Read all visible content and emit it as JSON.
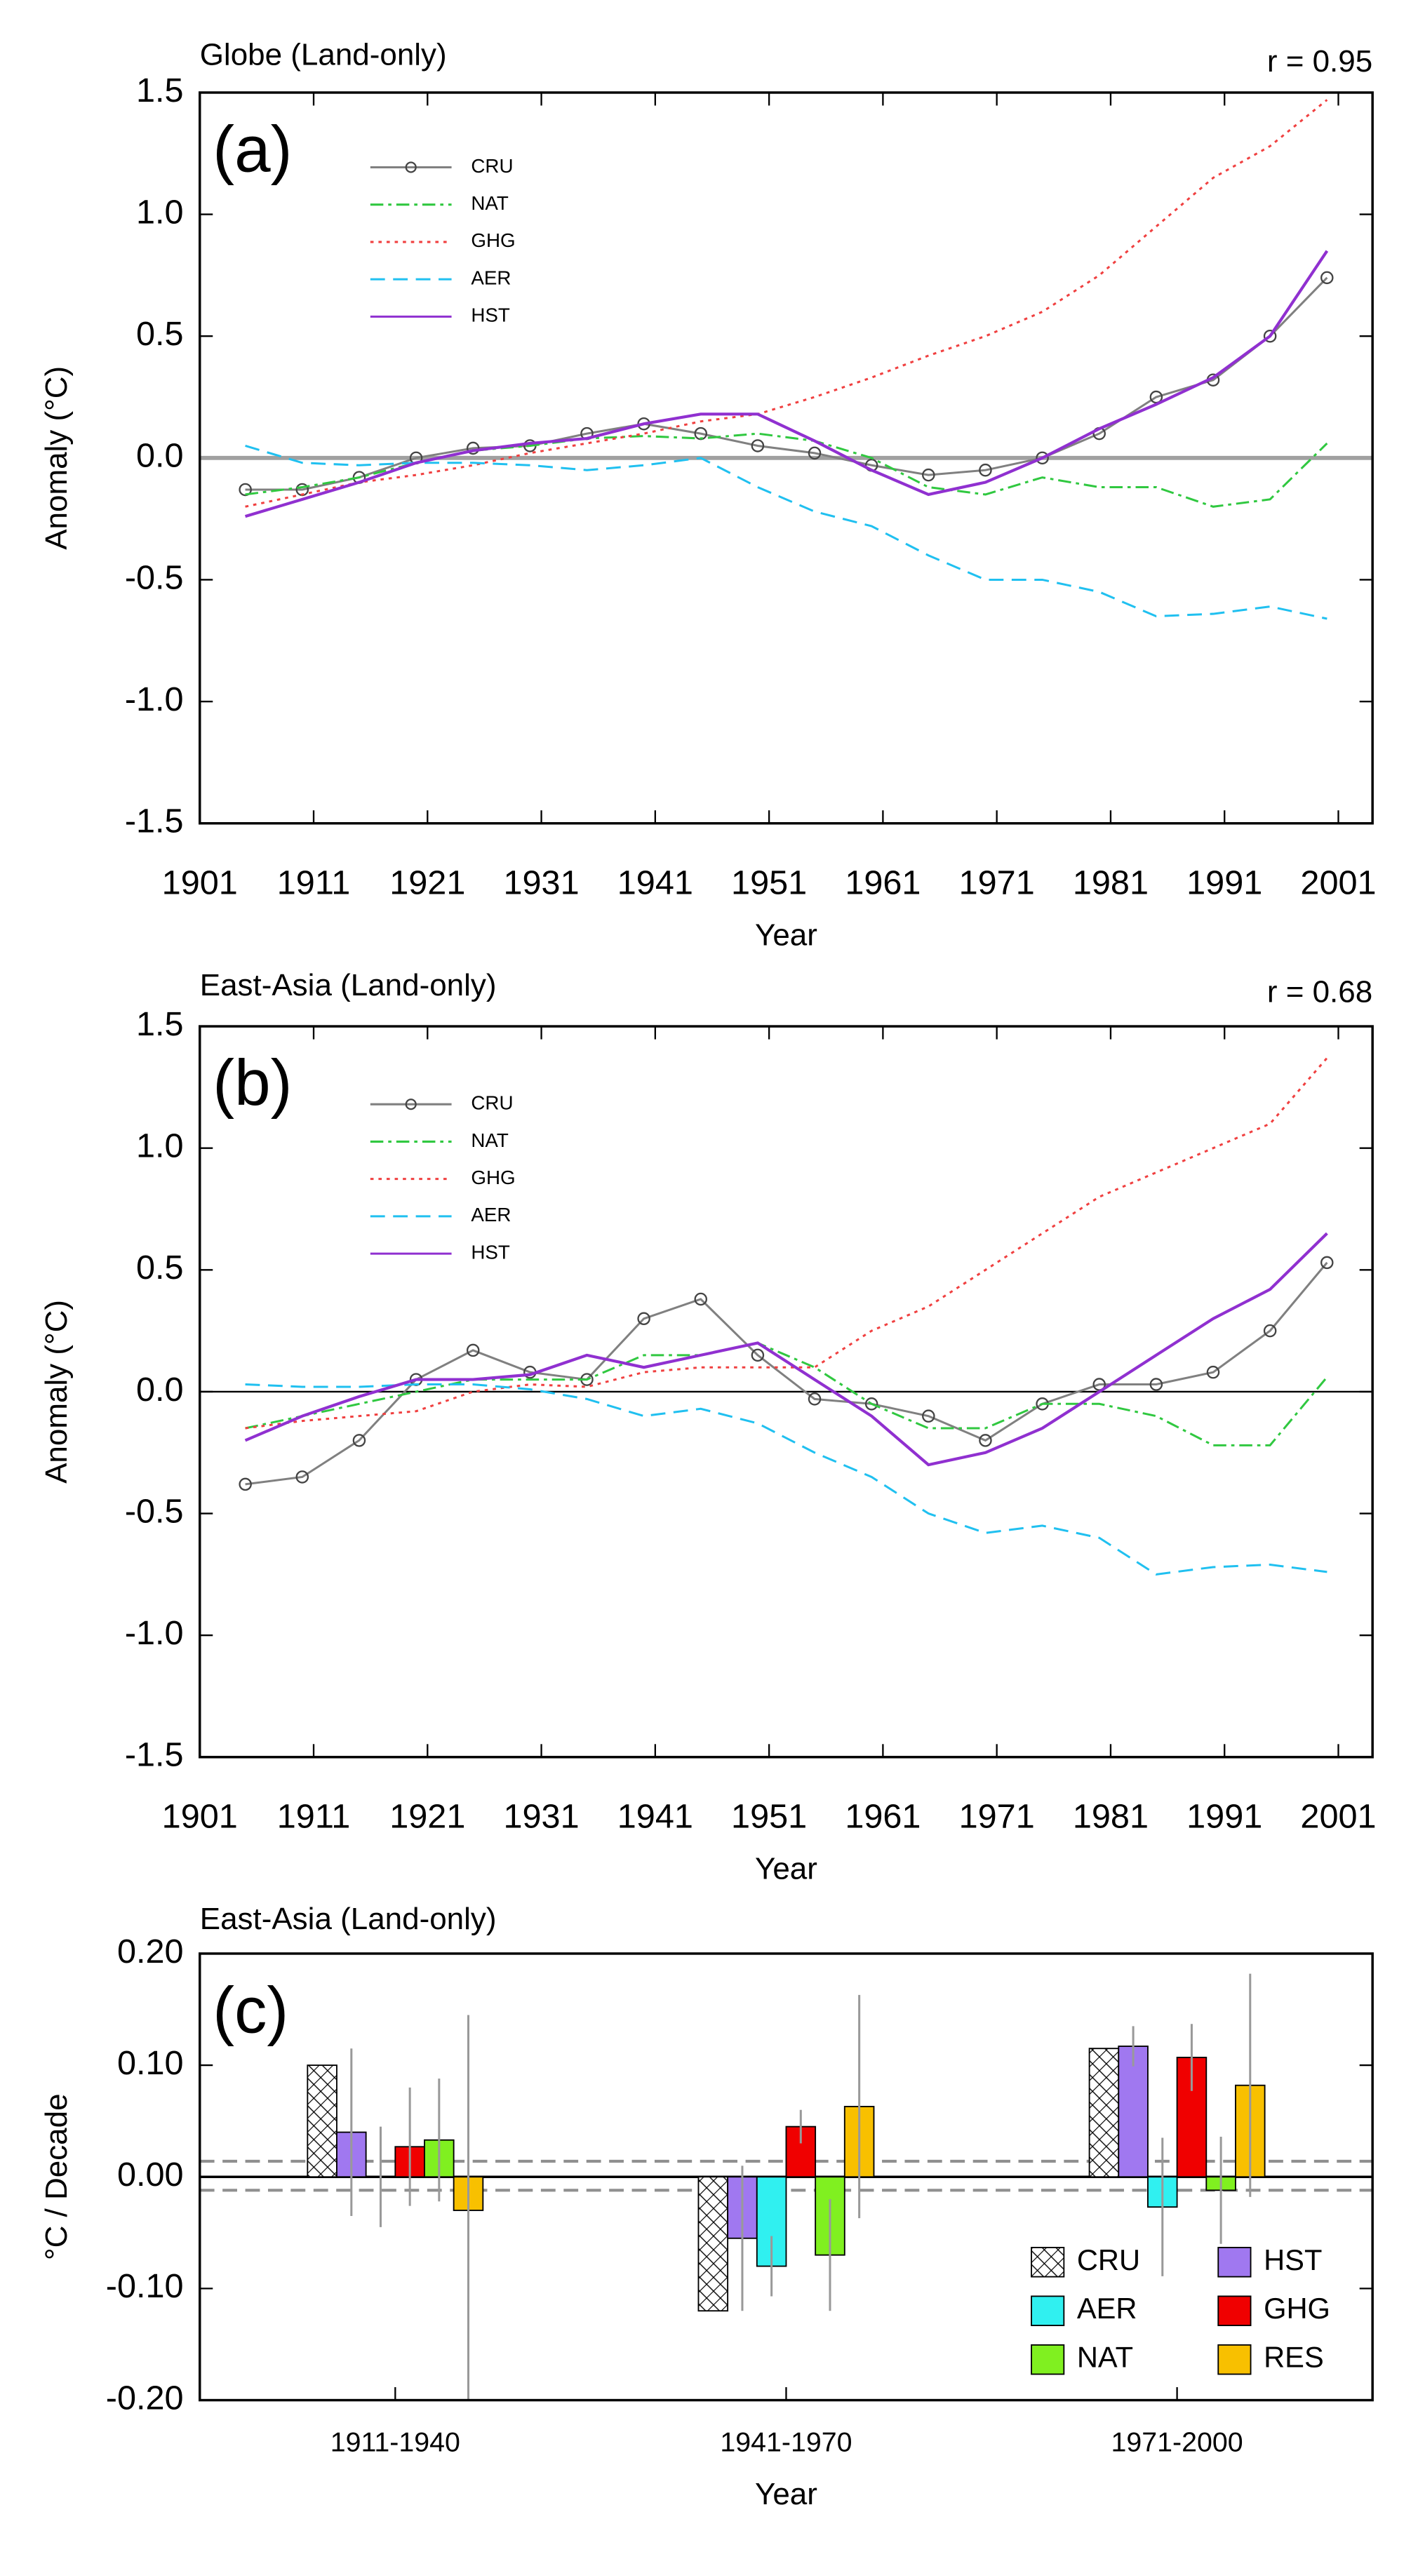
{
  "chart_data": [
    {
      "type": "line",
      "title": "Globe (Land-only)",
      "panel_label": "(a)",
      "annotation": "r = 0.95",
      "xlabel": "Year",
      "ylabel": "Anomaly (°C)",
      "x": [
        1905,
        1910,
        1915,
        1920,
        1925,
        1930,
        1935,
        1940,
        1945,
        1950,
        1955,
        1960,
        1965,
        1970,
        1975,
        1980,
        1985,
        1990,
        1995,
        2000
      ],
      "series": [
        {
          "name": "CRU",
          "color": "#808080",
          "style": "solid",
          "marker": "circle",
          "values": [
            -0.13,
            -0.13,
            -0.08,
            0.0,
            0.04,
            0.05,
            0.1,
            0.14,
            0.1,
            0.05,
            0.02,
            -0.03,
            -0.07,
            -0.05,
            0.0,
            0.1,
            0.25,
            0.32,
            0.5,
            0.74
          ]
        },
        {
          "name": "NAT",
          "color": "#30c840",
          "style": "dash-dot",
          "values": [
            -0.15,
            -0.12,
            -0.08,
            -0.02,
            0.03,
            0.05,
            0.08,
            0.09,
            0.08,
            0.1,
            0.07,
            0.0,
            -0.12,
            -0.15,
            -0.08,
            -0.12,
            -0.12,
            -0.2,
            -0.17,
            0.06
          ]
        },
        {
          "name": "GHG",
          "color": "#f04040",
          "style": "dotted",
          "values": [
            -0.2,
            -0.15,
            -0.1,
            -0.07,
            -0.03,
            0.02,
            0.06,
            0.1,
            0.15,
            0.18,
            0.25,
            0.33,
            0.42,
            0.5,
            0.6,
            0.75,
            0.95,
            1.15,
            1.28,
            1.47
          ]
        },
        {
          "name": "AER",
          "color": "#20c0f0",
          "style": "dashed",
          "values": [
            0.05,
            -0.02,
            -0.03,
            -0.02,
            -0.02,
            -0.03,
            -0.05,
            -0.03,
            0.0,
            -0.12,
            -0.22,
            -0.28,
            -0.4,
            -0.5,
            -0.5,
            -0.55,
            -0.65,
            -0.64,
            -0.61,
            -0.66
          ]
        },
        {
          "name": "HST",
          "color": "#9030d0",
          "style": "solid",
          "values": [
            -0.24,
            -0.17,
            -0.1,
            -0.02,
            0.03,
            0.06,
            0.08,
            0.14,
            0.18,
            0.18,
            0.07,
            -0.05,
            -0.15,
            -0.1,
            0.0,
            0.12,
            0.22,
            0.33,
            0.5,
            0.85
          ]
        }
      ],
      "xlim": [
        1901,
        2004
      ],
      "xticks": [
        1901,
        1911,
        1921,
        1931,
        1941,
        1951,
        1961,
        1971,
        1981,
        1991,
        2001
      ],
      "ylim": [
        -1.5,
        1.5
      ],
      "yticks": [
        1.5,
        {
          "value": 1,
          "label": "1.0"
        },
        0.5,
        {
          "value": 0,
          "label": "0.0"
        },
        -0.5,
        {
          "value": -1,
          "label": "-1.0"
        },
        -1.5
      ],
      "zero_line_color": "#a0a0a0",
      "legend": "upper left"
    },
    {
      "type": "line",
      "title": "East-Asia (Land-only)",
      "panel_label": "(b)",
      "annotation": "r = 0.68",
      "xlabel": "Year",
      "ylabel": "Anomaly (°C)",
      "x": [
        1905,
        1910,
        1915,
        1920,
        1925,
        1930,
        1935,
        1940,
        1945,
        1950,
        1955,
        1960,
        1965,
        1970,
        1975,
        1980,
        1985,
        1990,
        1995,
        2000
      ],
      "series": [
        {
          "name": "CRU",
          "color": "#808080",
          "style": "solid",
          "marker": "circle",
          "values": [
            -0.38,
            -0.35,
            -0.2,
            0.05,
            0.17,
            0.08,
            0.05,
            0.3,
            0.38,
            0.15,
            -0.03,
            -0.05,
            -0.1,
            -0.2,
            -0.05,
            0.03,
            0.03,
            0.08,
            0.25,
            0.53
          ]
        },
        {
          "name": "NAT",
          "color": "#30c840",
          "style": "dash-dot",
          "values": [
            -0.15,
            -0.1,
            -0.05,
            0.0,
            0.05,
            0.05,
            0.05,
            0.15,
            0.15,
            0.2,
            0.1,
            -0.05,
            -0.15,
            -0.15,
            -0.05,
            -0.05,
            -0.1,
            -0.22,
            -0.22,
            0.06
          ]
        },
        {
          "name": "GHG",
          "color": "#f04040",
          "style": "dotted",
          "values": [
            -0.15,
            -0.12,
            -0.1,
            -0.08,
            0.0,
            0.03,
            0.02,
            0.08,
            0.1,
            0.1,
            0.1,
            0.25,
            0.35,
            0.5,
            0.65,
            0.8,
            0.9,
            1.0,
            1.1,
            1.37
          ]
        },
        {
          "name": "AER",
          "color": "#20c0f0",
          "style": "dashed",
          "values": [
            0.03,
            0.02,
            0.02,
            0.03,
            0.03,
            0.01,
            -0.03,
            -0.1,
            -0.07,
            -0.13,
            -0.25,
            -0.35,
            -0.5,
            -0.58,
            -0.55,
            -0.6,
            -0.75,
            -0.72,
            -0.71,
            -0.74
          ]
        },
        {
          "name": "HST",
          "color": "#9030d0",
          "style": "solid",
          "values": [
            -0.2,
            -0.1,
            -0.02,
            0.05,
            0.05,
            0.07,
            0.15,
            0.1,
            0.15,
            0.2,
            0.05,
            -0.1,
            -0.3,
            -0.25,
            -0.15,
            0.0,
            0.15,
            0.3,
            0.42,
            0.65
          ]
        }
      ],
      "xlim": [
        1901,
        2004
      ],
      "xticks": [
        1901,
        1911,
        1921,
        1931,
        1941,
        1951,
        1961,
        1971,
        1981,
        1991,
        2001
      ],
      "ylim": [
        -1.5,
        1.5
      ],
      "yticks": [
        1.5,
        {
          "value": 1,
          "label": "1.0"
        },
        0.5,
        {
          "value": 0,
          "label": "0.0"
        },
        -0.5,
        {
          "value": -1,
          "label": "-1.0"
        },
        -1.5
      ],
      "zero_line_color": "#000000",
      "legend": "upper left"
    },
    {
      "type": "bar",
      "title": "East-Asia (Land-only)",
      "panel_label": "(c)",
      "xlabel": "Year",
      "ylabel": "°C / Decade",
      "categories": [
        "1911-1940",
        "1941-1970",
        "1971-2000"
      ],
      "series": [
        {
          "name": "CRU",
          "color": "#ffffff",
          "hatch": true,
          "values": [
            0.1,
            -0.12,
            0.115
          ]
        },
        {
          "name": "HST",
          "color": "#a078f0",
          "values": [
            0.04,
            -0.055,
            0.117
          ],
          "errors": [
            0.075,
            0.065,
            0.018
          ]
        },
        {
          "name": "AER",
          "color": "#30f0f0",
          "values": [
            0.0,
            -0.08,
            -0.027
          ],
          "errors": [
            0.045,
            0.027,
            0.062
          ]
        },
        {
          "name": "GHG",
          "color": "#f00000",
          "values": [
            0.027,
            0.045,
            0.107
          ],
          "errors": [
            0.053,
            0.015,
            0.03
          ]
        },
        {
          "name": "NAT",
          "color": "#80f020",
          "values": [
            0.033,
            -0.07,
            -0.012
          ],
          "errors": [
            0.055,
            0.05,
            0.048
          ]
        },
        {
          "name": "RES",
          "color": "#f8c000",
          "values": [
            -0.03,
            0.063,
            0.082
          ],
          "errors": [
            0.175,
            0.1,
            0.1
          ]
        }
      ],
      "ylim": [
        -0.2,
        0.2
      ],
      "yticks": [
        {
          "value": 0.2,
          "label": "0.20"
        },
        {
          "value": 0.1,
          "label": "0.10"
        },
        {
          "value": 0,
          "label": "0.00"
        },
        {
          "value": -0.1,
          "label": "-0.10"
        },
        {
          "value": -0.2,
          "label": "-0.20"
        }
      ],
      "reference_lines": [
        0.014,
        -0.012
      ],
      "legend": "lower right"
    }
  ]
}
